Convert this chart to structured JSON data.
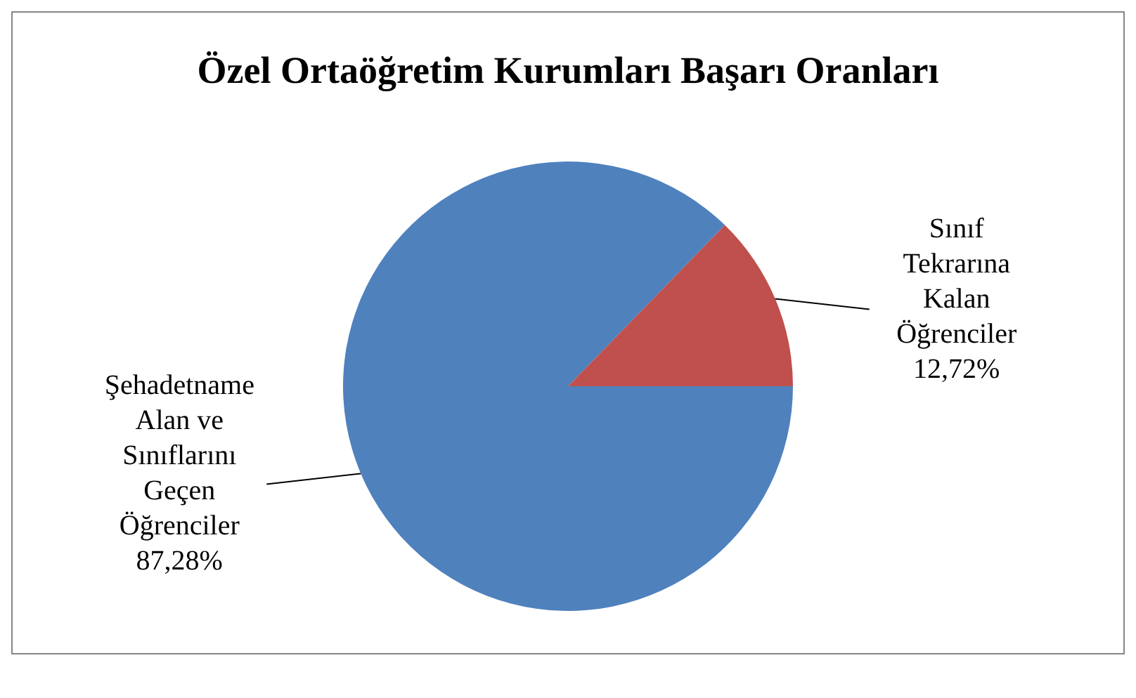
{
  "chart_data": {
    "type": "pie",
    "title": "Özel Ortaöğretim Kurumları Başarı Oranları",
    "categories": [
      "Şehadetname Alan ve Sınıflarını Geçen Öğrenciler",
      "Sınıf Tekrarına Kalan Öğrenciler"
    ],
    "values": [
      87.28,
      12.72
    ],
    "colors": [
      "#4f81bd",
      "#c0504d"
    ],
    "value_labels": [
      "87,28%",
      "12,72%"
    ],
    "legend": false
  }
}
